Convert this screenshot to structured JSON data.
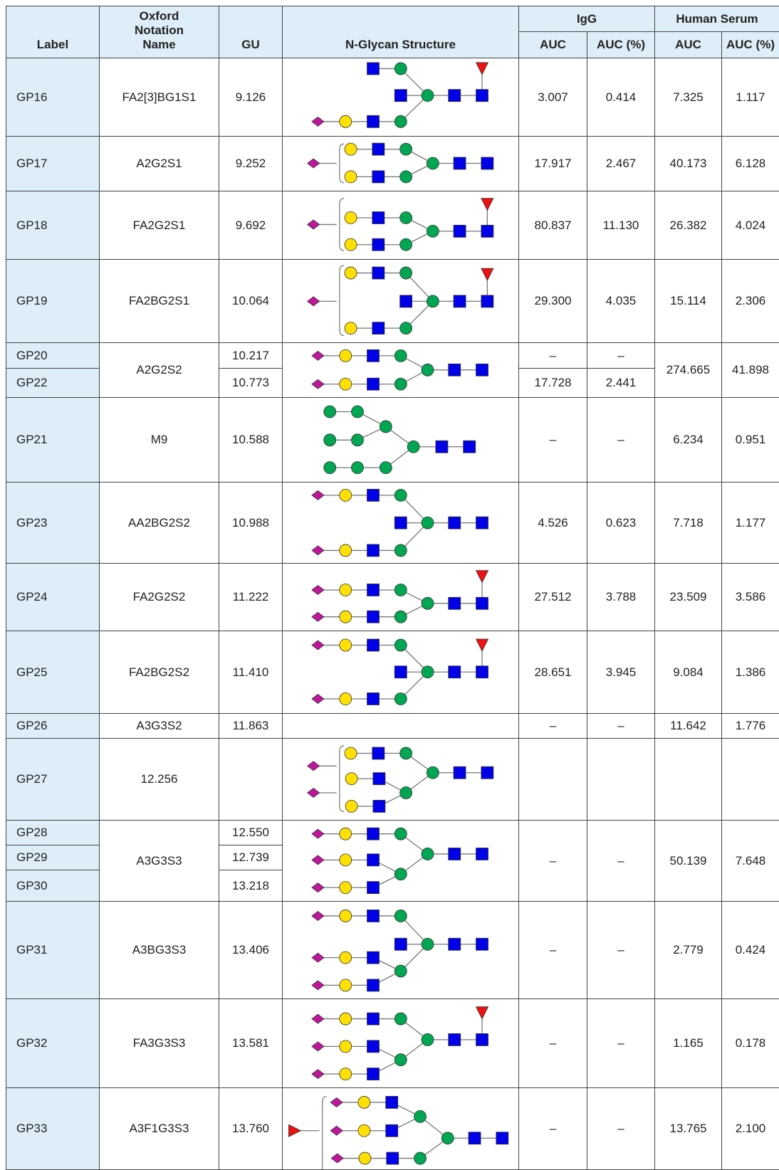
{
  "table": {
    "header": {
      "label": "Label",
      "oxford": "Oxford Notation Name",
      "gu": "GU",
      "structure": "N-Glycan Structure",
      "igg": "IgG",
      "human_serum": "Human Serum",
      "subcolumns": [
        "AUC",
        "AUC (%)",
        "AUC",
        "AUC (%)"
      ]
    },
    "rows": [
      {
        "labels": [
          "GP16"
        ],
        "name": "FA2[3]BG1S1",
        "gu": [
          "9.126"
        ],
        "igg_auc": [
          "3.007"
        ],
        "igg_pct": [
          "0.414"
        ],
        "hs_auc": [
          "7.325"
        ],
        "hs_pct": [
          "1.117"
        ]
      },
      {
        "labels": [
          "GP17"
        ],
        "name": "A2G2S1",
        "gu": [
          "9.252"
        ],
        "igg_auc": [
          "17.917"
        ],
        "igg_pct": [
          "2.467"
        ],
        "hs_auc": [
          "40.173"
        ],
        "hs_pct": [
          "6.128"
        ]
      },
      {
        "labels": [
          "GP18"
        ],
        "name": "FA2G2S1",
        "gu": [
          "9.692"
        ],
        "igg_auc": [
          "80.837"
        ],
        "igg_pct": [
          "11.130"
        ],
        "hs_auc": [
          "26.382"
        ],
        "hs_pct": [
          "4.024"
        ]
      },
      {
        "labels": [
          "GP19"
        ],
        "name": "FA2BG2S1",
        "gu": [
          "10.064"
        ],
        "igg_auc": [
          "29.300"
        ],
        "igg_pct": [
          "4.035"
        ],
        "hs_auc": [
          "15.114"
        ],
        "hs_pct": [
          "2.306"
        ]
      },
      {
        "labels": [
          "GP20",
          "GP22"
        ],
        "name": "A2G2S2",
        "gu": [
          "10.217",
          "10.773"
        ],
        "igg_auc": [
          "–",
          "17.728"
        ],
        "igg_pct": [
          "–",
          "2.441"
        ],
        "hs_auc": [
          "274.665"
        ],
        "hs_pct": [
          "41.898"
        ]
      },
      {
        "labels": [
          "GP21"
        ],
        "name": "M9",
        "gu": [
          "10.588"
        ],
        "igg_auc": [
          "–"
        ],
        "igg_pct": [
          "–"
        ],
        "hs_auc": [
          "6.234"
        ],
        "hs_pct": [
          "0.951"
        ]
      },
      {
        "labels": [
          "GP23"
        ],
        "name": "AA2BG2S2",
        "gu": [
          "10.988"
        ],
        "igg_auc": [
          "4.526"
        ],
        "igg_pct": [
          "0.623"
        ],
        "hs_auc": [
          "7.718"
        ],
        "hs_pct": [
          "1.177"
        ]
      },
      {
        "labels": [
          "GP24"
        ],
        "name": "FA2G2S2",
        "gu": [
          "11.222"
        ],
        "igg_auc": [
          "27.512"
        ],
        "igg_pct": [
          "3.788"
        ],
        "hs_auc": [
          "23.509"
        ],
        "hs_pct": [
          "3.586"
        ]
      },
      {
        "labels": [
          "GP25"
        ],
        "name": "FA2BG2S2",
        "gu": [
          "11.410"
        ],
        "igg_auc": [
          "28.651"
        ],
        "igg_pct": [
          "3.945"
        ],
        "hs_auc": [
          "9.084"
        ],
        "hs_pct": [
          "1.386"
        ]
      },
      {
        "labels": [
          "GP26"
        ],
        "name": "A3G3S2",
        "gu": [
          "11.863"
        ],
        "igg_auc": [
          "–"
        ],
        "igg_pct": [
          "–"
        ],
        "hs_auc": [
          "11.642"
        ],
        "hs_pct": [
          "1.776"
        ]
      },
      {
        "labels": [
          "GP27"
        ],
        "name": "12.256",
        "gu": [],
        "igg_auc": [],
        "igg_pct": [],
        "hs_auc": [],
        "hs_pct": []
      },
      {
        "labels": [
          "GP28",
          "GP29",
          "GP30"
        ],
        "name": "A3G3S3",
        "gu": [
          "12.550",
          "12.739",
          "13.218"
        ],
        "igg_auc": [
          "–"
        ],
        "igg_pct": [
          "–"
        ],
        "hs_auc": [
          "50.139"
        ],
        "hs_pct": [
          "7.648"
        ]
      },
      {
        "labels": [
          "GP31"
        ],
        "name": "A3BG3S3",
        "gu": [
          "13.406"
        ],
        "igg_auc": [
          "–"
        ],
        "igg_pct": [
          "–"
        ],
        "hs_auc": [
          "2.779"
        ],
        "hs_pct": [
          "0.424"
        ]
      },
      {
        "labels": [
          "GP32"
        ],
        "name": "FA3G3S3",
        "gu": [
          "13.581"
        ],
        "igg_auc": [
          "–"
        ],
        "igg_pct": [
          "–"
        ],
        "hs_auc": [
          "1.165"
        ],
        "hs_pct": [
          "0.178"
        ]
      },
      {
        "labels": [
          "GP33"
        ],
        "name": "A3F1G3S3",
        "gu": [
          "13.760"
        ],
        "igg_auc": [
          "–"
        ],
        "igg_pct": [
          "–"
        ],
        "hs_auc": [
          "13.765"
        ],
        "hs_pct": [
          "2.100"
        ]
      }
    ]
  }
}
